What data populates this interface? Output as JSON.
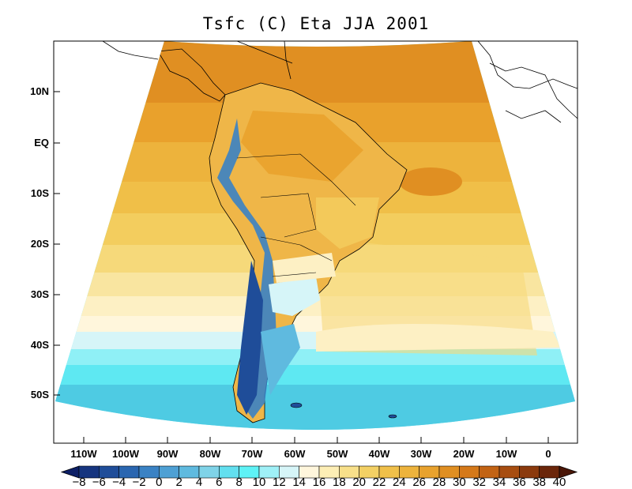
{
  "title": "Tsfc (C) Eta JJA 2001",
  "lat_labels": [
    "10N",
    "EQ",
    "10S",
    "20S",
    "30S",
    "40S",
    "50S"
  ],
  "lon_labels": [
    "110W",
    "100W",
    "90W",
    "80W",
    "70W",
    "60W",
    "50W",
    "40W",
    "30W",
    "20W",
    "10W",
    "0"
  ],
  "colorbar": {
    "labels": [
      "−8",
      "−6",
      "−4",
      "−2",
      "0",
      "2",
      "4",
      "6",
      "8",
      "10",
      "12",
      "14",
      "16",
      "18",
      "20",
      "22",
      "24",
      "26",
      "28",
      "30",
      "32",
      "34",
      "36",
      "38",
      "40"
    ],
    "colors": [
      "#0d1f66",
      "#16357f",
      "#1f4d99",
      "#2a66b0",
      "#3a82c4",
      "#4ea0d4",
      "#5fbadf",
      "#7fd3e8",
      "#62dfef",
      "#5ef2f6",
      "#9ff0f7",
      "#d6f5f8",
      "#fff6dc",
      "#fdeeb5",
      "#f8e08a",
      "#f3d064",
      "#f0c04a",
      "#edb33c",
      "#e8a22e",
      "#e08f22",
      "#d5791a",
      "#c26314",
      "#a74d10",
      "#8b3a0d",
      "#6b260a",
      "#4a1607"
    ]
  },
  "colors": {
    "land_overlay": "#000000",
    "background": "#ffffff"
  }
}
